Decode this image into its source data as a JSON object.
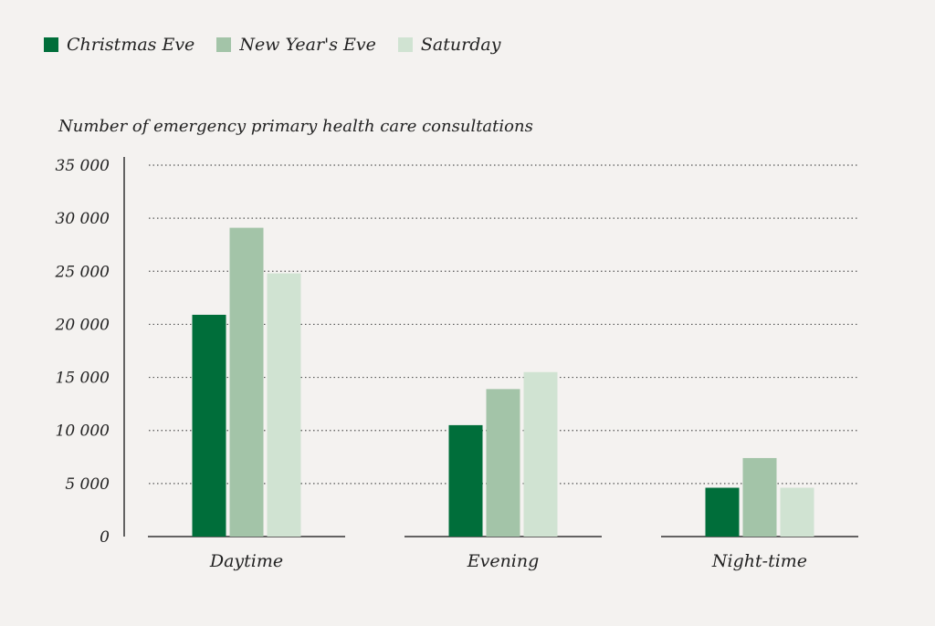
{
  "legend": {
    "series": [
      {
        "name": "Christmas Eve",
        "color": "#006e3a"
      },
      {
        "name": "New Year's Eve",
        "color": "#a3c4a8"
      },
      {
        "name": "Saturday",
        "color": "#d0e3d2"
      }
    ]
  },
  "chart_data": {
    "type": "bar",
    "title": "",
    "ylabel": "Number of emergency primary health care consultations",
    "xlabel": "",
    "categories": [
      "Daytime",
      "Evening",
      "Night-time"
    ],
    "series": [
      {
        "name": "Christmas Eve",
        "values": [
          20900,
          10500,
          4600
        ]
      },
      {
        "name": "New Year's Eve",
        "values": [
          29100,
          13900,
          7400
        ]
      },
      {
        "name": "Saturday",
        "values": [
          24800,
          15500,
          4600
        ]
      }
    ],
    "ylim": [
      0,
      35000
    ],
    "yticks": [
      {
        "value": 0,
        "label": "0"
      },
      {
        "value": 5000,
        "label": "5 000"
      },
      {
        "value": 10000,
        "label": "10 000"
      },
      {
        "value": 15000,
        "label": "15 000"
      },
      {
        "value": 20000,
        "label": "20 000"
      },
      {
        "value": 25000,
        "label": "25 000"
      },
      {
        "value": 30000,
        "label": "30 000"
      },
      {
        "value": 35000,
        "label": "35 000"
      }
    ],
    "grid": true,
    "legend_position": "top-left"
  }
}
